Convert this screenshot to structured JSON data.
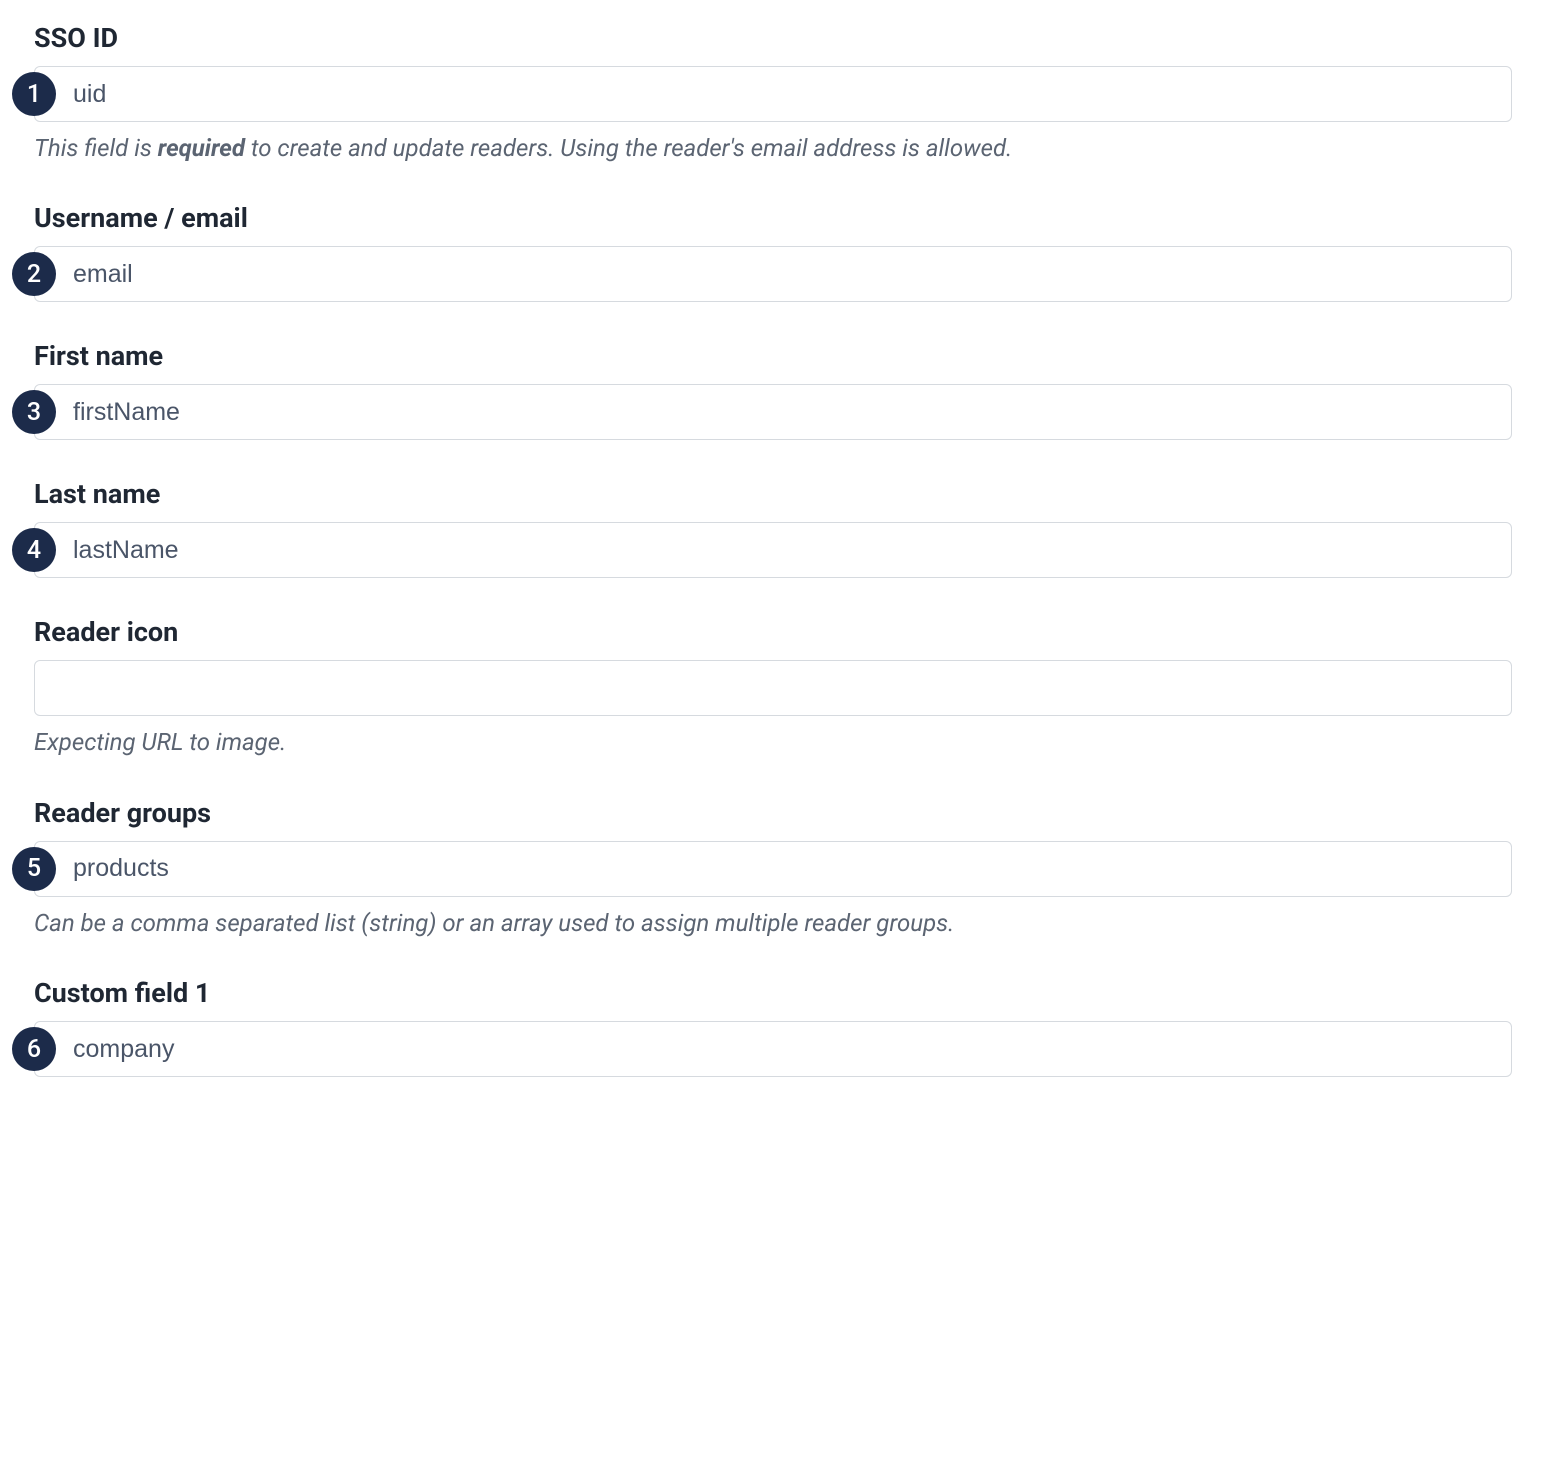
{
  "colors": {
    "badge_bg": "#1c2b4a",
    "badge_text": "#ffffff",
    "label_text": "#1f2733",
    "input_border": "#d6dadf",
    "input_text": "#4a5568",
    "helper_text": "#5b6472",
    "page_bg": "#ffffff"
  },
  "fields": {
    "sso_id": {
      "label": "SSO ID",
      "badge": "1",
      "value": "uid",
      "helper_pre": "This field is ",
      "helper_bold": "required",
      "helper_post": " to create and update readers. Using the reader's email address is allowed."
    },
    "username_email": {
      "label": "Username / email",
      "badge": "2",
      "value": "email"
    },
    "first_name": {
      "label": "First name",
      "badge": "3",
      "value": "firstName"
    },
    "last_name": {
      "label": "Last name",
      "badge": "4",
      "value": "lastName"
    },
    "reader_icon": {
      "label": "Reader icon",
      "value": "",
      "helper": "Expecting URL to image."
    },
    "reader_groups": {
      "label": "Reader groups",
      "badge": "5",
      "value": "products",
      "helper": "Can be a comma separated list (string) or an array used to assign multiple reader groups."
    },
    "custom_field_1": {
      "label": "Custom field 1",
      "badge": "6",
      "value": "company"
    }
  }
}
